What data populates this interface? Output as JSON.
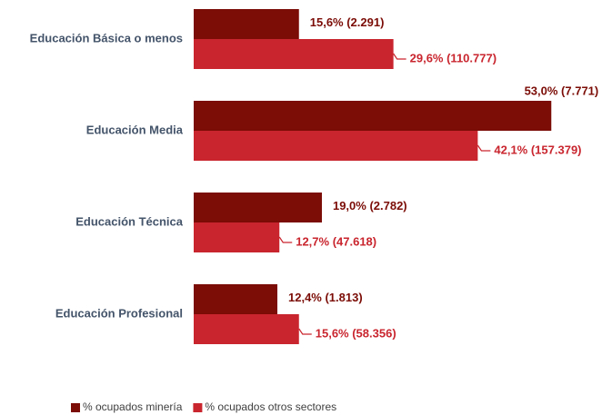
{
  "chart_data": {
    "type": "barh",
    "categories": [
      "Educación Básica o menos",
      "Educación Media",
      "Educación Técnica",
      "Educación Profesional"
    ],
    "series": [
      {
        "name": "% ocupados minería",
        "color": "#7b0c06",
        "values": [
          15.6,
          53.0,
          19.0,
          12.4
        ],
        "value_labels": [
          "15,6% (2.291)",
          "53,0% (7.771)",
          "19,0% (2.782)",
          "12,4% (1.813)"
        ]
      },
      {
        "name": "% ocupados otros sectores",
        "color": "#c9252e",
        "values": [
          29.6,
          42.1,
          12.7,
          15.6
        ],
        "value_labels": [
          "29,6% (110.777)",
          "42,1% (157.379)",
          "12,7% (47.618)",
          "15,6% (58.356)"
        ]
      }
    ],
    "legend": "bottom"
  }
}
